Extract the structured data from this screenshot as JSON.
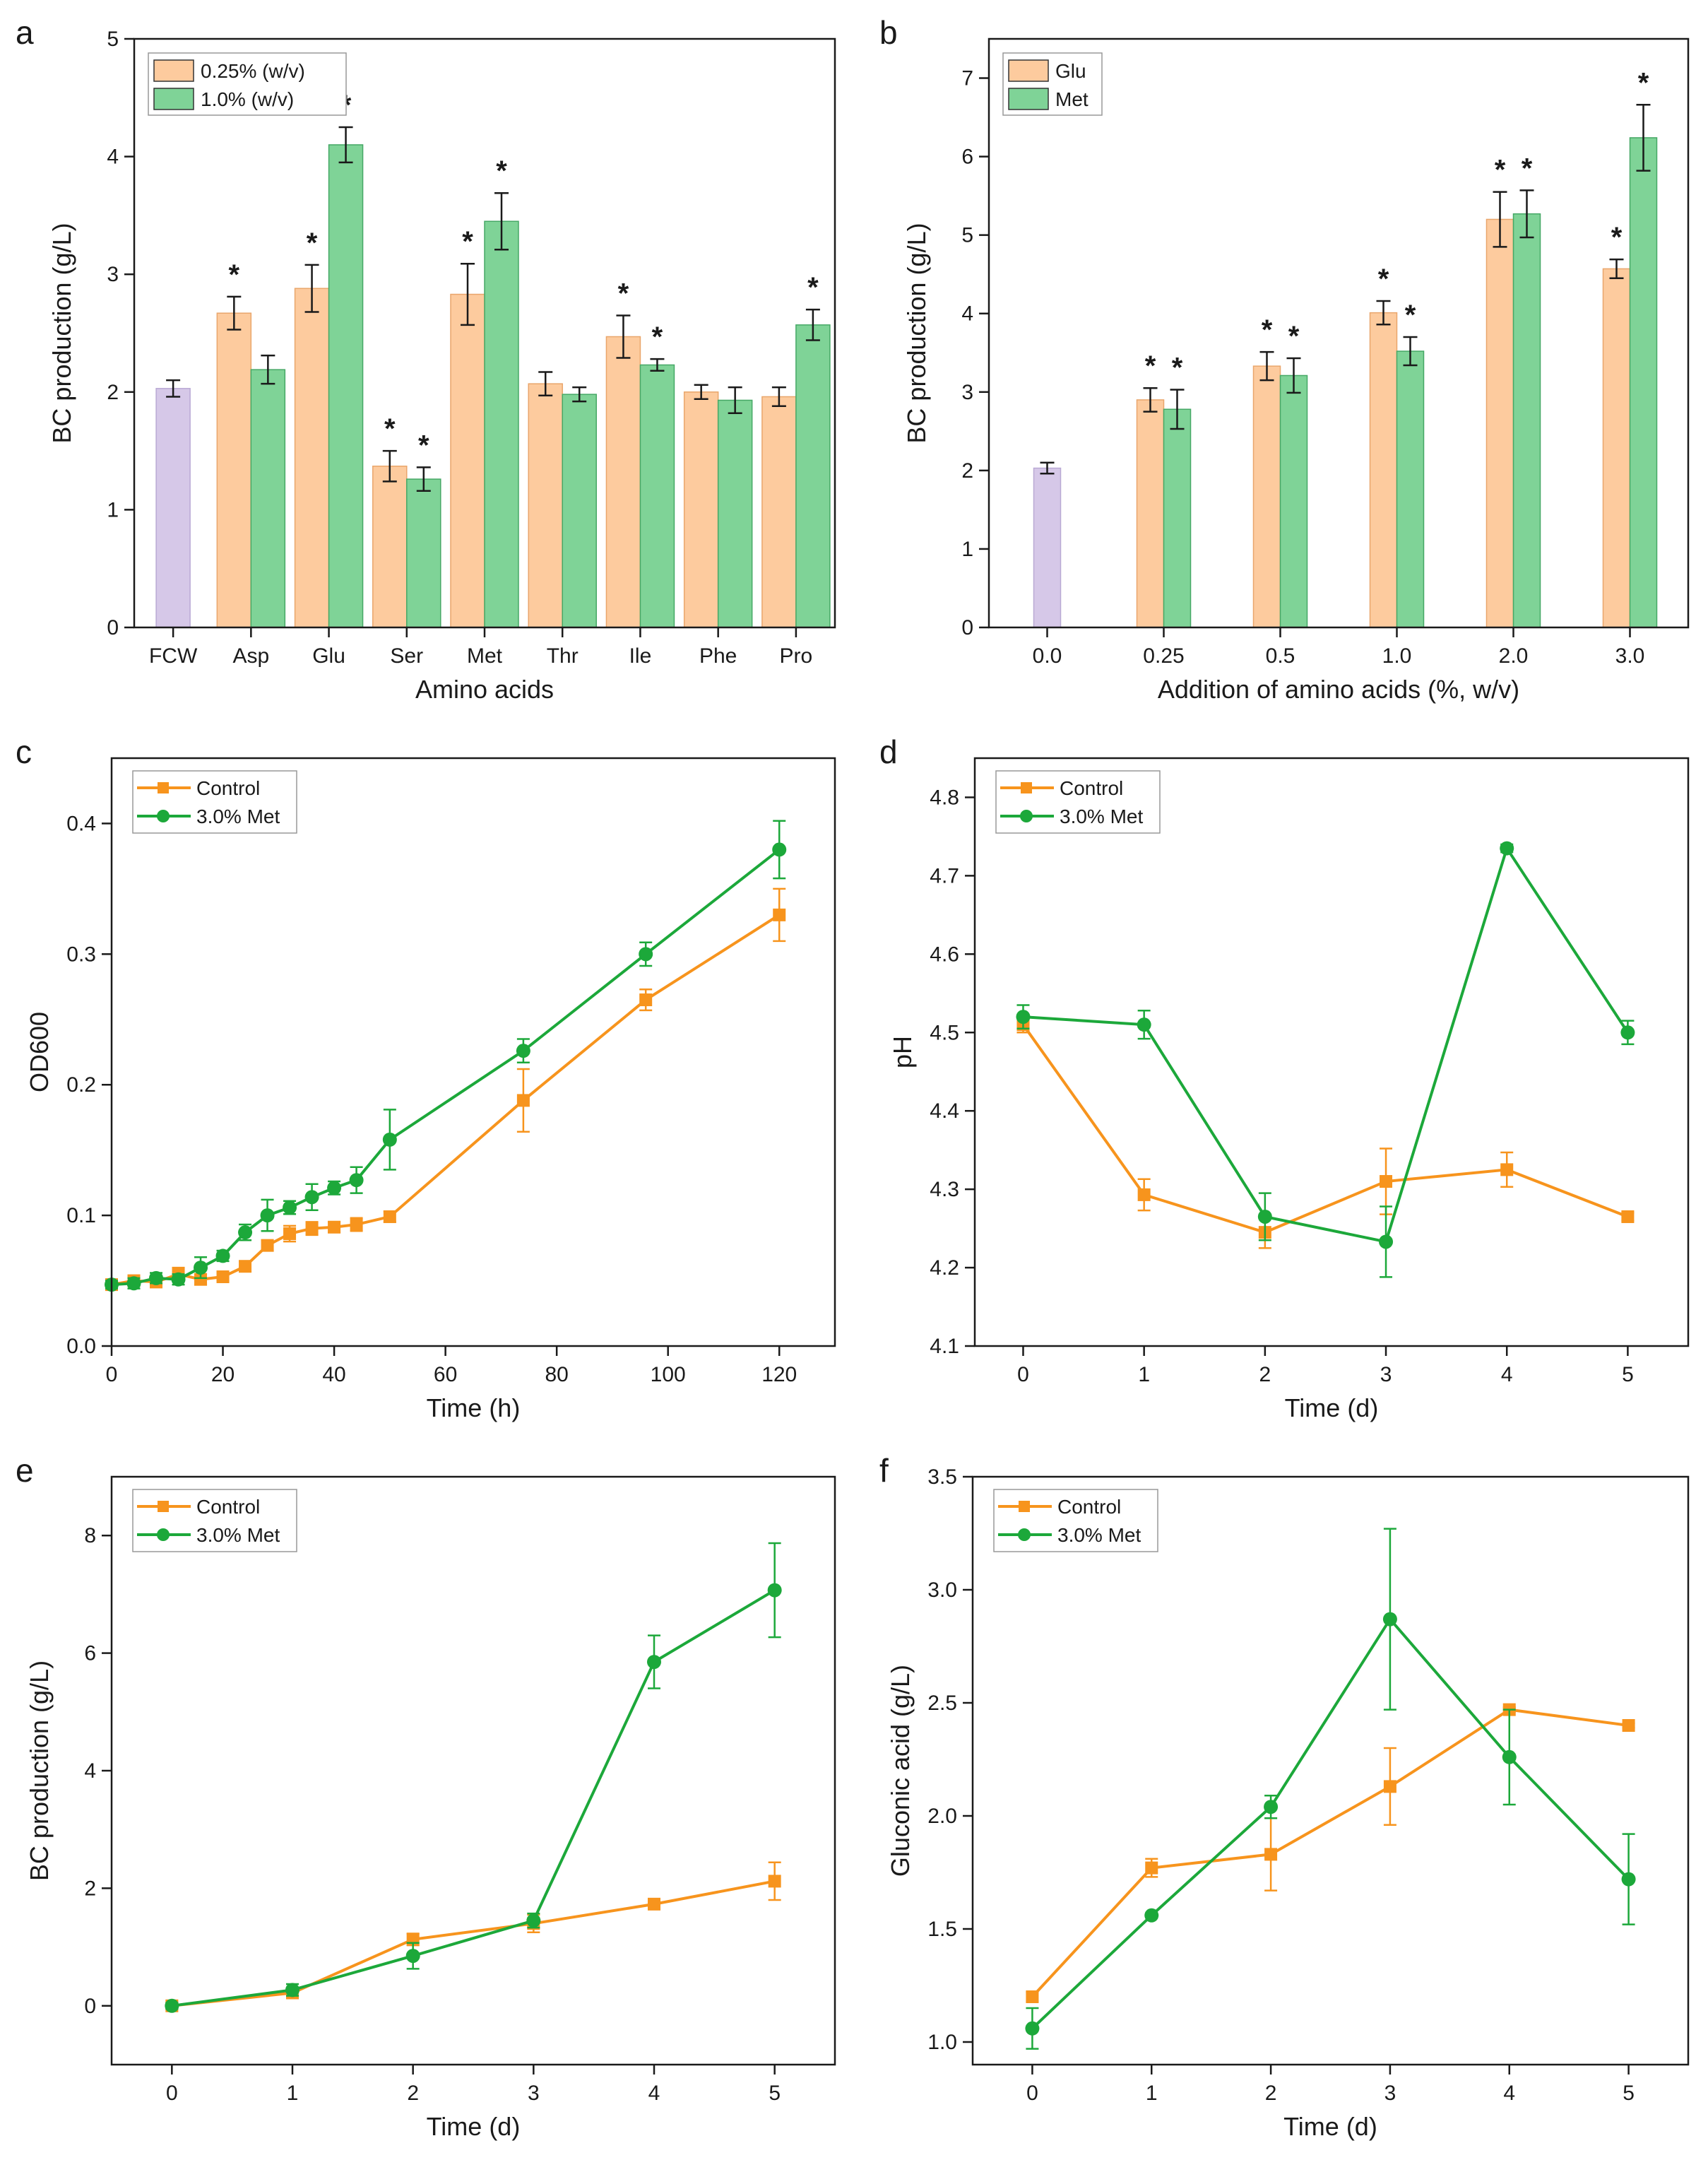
{
  "colors": {
    "orange_fill": "#FDCB9E",
    "green_fill": "#7FD397",
    "purple_fill": "#D6C8E8",
    "orange_line": "#F7941D",
    "green_line": "#1CA83A",
    "error": "#1a1a1a",
    "axis": "#1a1a1a"
  },
  "chart_data": [
    {
      "panel": "a",
      "type": "bar",
      "xlabel": "Amino acids",
      "ylabel": "BC production (g/L)",
      "ylim": [
        0,
        5
      ],
      "yticks": [
        "0",
        "1",
        "2",
        "3",
        "4",
        "5"
      ],
      "categories": [
        "FCW",
        "Asp",
        "Glu",
        "Ser",
        "Met",
        "Thr",
        "Ile",
        "Phe",
        "Pro"
      ],
      "control": {
        "category": "FCW",
        "value": 2.03,
        "error": 0.07
      },
      "series": [
        {
          "name": "0.25% (w/v)",
          "color_key": "orange_fill",
          "values": [
            null,
            2.67,
            2.88,
            1.37,
            2.83,
            2.07,
            2.47,
            2.0,
            1.96
          ],
          "errors": [
            null,
            0.14,
            0.2,
            0.13,
            0.26,
            0.1,
            0.18,
            0.06,
            0.08
          ],
          "significant": [
            false,
            true,
            true,
            true,
            true,
            false,
            true,
            false,
            false
          ]
        },
        {
          "name": "1.0% (w/v)",
          "color_key": "green_fill",
          "values": [
            null,
            2.19,
            4.1,
            1.26,
            3.45,
            1.98,
            2.23,
            1.93,
            2.57
          ],
          "errors": [
            null,
            0.12,
            0.15,
            0.1,
            0.24,
            0.06,
            0.05,
            0.11,
            0.13
          ],
          "significant": [
            false,
            false,
            true,
            true,
            true,
            false,
            true,
            false,
            true
          ]
        }
      ],
      "significance_marker": "*"
    },
    {
      "panel": "b",
      "type": "bar",
      "xlabel": "Addition of amino acids (%, w/v)",
      "ylabel": "BC production (g/L)",
      "ylim": [
        0,
        7.5
      ],
      "yticks": [
        "0",
        "1",
        "2",
        "3",
        "4",
        "5",
        "6",
        "7"
      ],
      "categories": [
        "0.0",
        "0.25",
        "0.5",
        "1.0",
        "2.0",
        "3.0"
      ],
      "control": {
        "category": "0.0",
        "value": 2.03,
        "error": 0.07
      },
      "series": [
        {
          "name": "Glu",
          "color_key": "orange_fill",
          "values": [
            null,
            2.9,
            3.33,
            4.01,
            5.2,
            4.57
          ],
          "errors": [
            null,
            0.15,
            0.18,
            0.15,
            0.35,
            0.12
          ],
          "significant": [
            false,
            true,
            true,
            true,
            true,
            true
          ]
        },
        {
          "name": "Met",
          "color_key": "green_fill",
          "values": [
            null,
            2.78,
            3.21,
            3.52,
            5.27,
            6.24
          ],
          "errors": [
            null,
            0.25,
            0.22,
            0.18,
            0.3,
            0.42
          ],
          "significant": [
            false,
            true,
            true,
            true,
            true,
            true
          ]
        }
      ],
      "significance_marker": "*"
    },
    {
      "panel": "c",
      "type": "line",
      "xlabel": "Time (h)",
      "ylabel": "OD600",
      "xlim": [
        0,
        130
      ],
      "ylim": [
        0,
        0.45
      ],
      "xticks": [
        0,
        20,
        40,
        60,
        80,
        100,
        120
      ],
      "xtick_labels": [
        "0",
        "20",
        "40",
        "60",
        "80",
        "100",
        "120"
      ],
      "yticks": [
        0,
        0.1,
        0.2,
        0.3,
        0.4
      ],
      "ytick_labels": [
        "0.0",
        "0.1",
        "0.2",
        "0.3",
        "0.4"
      ],
      "series": [
        {
          "name": "Control",
          "color_key": "orange_line",
          "marker": "square",
          "x": [
            0,
            4,
            8,
            12,
            16,
            20,
            24,
            28,
            32,
            36,
            40,
            44,
            50,
            74,
            96,
            120
          ],
          "y": [
            0.047,
            0.05,
            0.049,
            0.055,
            0.051,
            0.053,
            0.061,
            0.077,
            0.086,
            0.09,
            0.091,
            0.093,
            0.099,
            0.188,
            0.265,
            0.33
          ],
          "err": [
            0.003,
            0.003,
            0.003,
            0.005,
            0.004,
            0.003,
            0.004,
            0.004,
            0.006,
            0.005,
            0.004,
            0.005,
            0.004,
            0.024,
            0.008,
            0.02
          ]
        },
        {
          "name": "3.0% Met",
          "color_key": "green_line",
          "marker": "circle",
          "x": [
            0,
            4,
            8,
            12,
            16,
            20,
            24,
            28,
            32,
            36,
            40,
            44,
            50,
            74,
            96,
            120
          ],
          "y": [
            0.047,
            0.048,
            0.052,
            0.051,
            0.06,
            0.069,
            0.087,
            0.1,
            0.106,
            0.114,
            0.121,
            0.127,
            0.158,
            0.226,
            0.3,
            0.38
          ],
          "err": [
            0.003,
            0.004,
            0.004,
            0.004,
            0.008,
            0.004,
            0.006,
            0.012,
            0.005,
            0.01,
            0.005,
            0.01,
            0.023,
            0.009,
            0.009,
            0.022
          ]
        }
      ]
    },
    {
      "panel": "d",
      "type": "line",
      "xlabel": "Time (d)",
      "ylabel": "pH",
      "xlim": [
        -0.4,
        5.5
      ],
      "ylim": [
        4.1,
        4.85
      ],
      "xticks": [
        0,
        1,
        2,
        3,
        4,
        5
      ],
      "xtick_labels": [
        "0",
        "1",
        "2",
        "3",
        "4",
        "5"
      ],
      "yticks": [
        4.1,
        4.2,
        4.3,
        4.4,
        4.5,
        4.6,
        4.7,
        4.8
      ],
      "ytick_labels": [
        "4.1",
        "4.2",
        "4.3",
        "4.4",
        "4.5",
        "4.6",
        "4.7",
        "4.8"
      ],
      "series": [
        {
          "name": "Control",
          "color_key": "orange_line",
          "marker": "square",
          "x": [
            0,
            1,
            2,
            3,
            4,
            5
          ],
          "y": [
            4.51,
            4.293,
            4.245,
            4.31,
            4.325,
            4.265
          ],
          "err": [
            0.01,
            0.02,
            0.02,
            0.042,
            0.022,
            0.005
          ]
        },
        {
          "name": "3.0% Met",
          "color_key": "green_line",
          "marker": "circle",
          "x": [
            0,
            1,
            2,
            3,
            4,
            5
          ],
          "y": [
            4.52,
            4.51,
            4.265,
            4.233,
            4.735,
            4.5
          ],
          "err": [
            0.015,
            0.018,
            0.03,
            0.045,
            0.005,
            0.015
          ]
        }
      ]
    },
    {
      "panel": "e",
      "type": "line",
      "xlabel": "Time (d)",
      "ylabel": "BC production (g/L)",
      "xlim": [
        -0.5,
        5.5
      ],
      "ylim": [
        -1,
        9
      ],
      "xticks": [
        0,
        1,
        2,
        3,
        4,
        5
      ],
      "xtick_labels": [
        "0",
        "1",
        "2",
        "3",
        "4",
        "5"
      ],
      "yticks": [
        0,
        2,
        4,
        6,
        8
      ],
      "ytick_labels": [
        "0",
        "2",
        "4",
        "6",
        "8"
      ],
      "series": [
        {
          "name": "Control",
          "color_key": "orange_line",
          "marker": "square",
          "x": [
            0,
            1,
            2,
            3,
            4,
            5
          ],
          "y": [
            0,
            0.22,
            1.13,
            1.4,
            1.73,
            2.12
          ],
          "err": [
            0.05,
            0.08,
            0.1,
            0.15,
            0.08,
            0.32
          ]
        },
        {
          "name": "3.0% Met",
          "color_key": "green_line",
          "marker": "circle",
          "x": [
            0,
            1,
            2,
            3,
            4,
            5
          ],
          "y": [
            0,
            0.27,
            0.85,
            1.45,
            5.85,
            7.07
          ],
          "err": [
            0.05,
            0.1,
            0.22,
            0.12,
            0.45,
            0.8
          ]
        }
      ]
    },
    {
      "panel": "f",
      "type": "line",
      "xlabel": "Time (d)",
      "ylabel": "Gluconic acid (g/L)",
      "xlim": [
        -0.5,
        5.5
      ],
      "ylim": [
        0.9,
        3.5
      ],
      "xticks": [
        0,
        1,
        2,
        3,
        4,
        5
      ],
      "xtick_labels": [
        "0",
        "1",
        "2",
        "3",
        "4",
        "5"
      ],
      "yticks": [
        1.0,
        1.5,
        2.0,
        2.5,
        3.0,
        3.5
      ],
      "ytick_labels": [
        "1.0",
        "1.5",
        "2.0",
        "2.5",
        "3.0",
        "3.5"
      ],
      "series": [
        {
          "name": "Control",
          "color_key": "orange_line",
          "marker": "square",
          "x": [
            0,
            1,
            2,
            3,
            4,
            5
          ],
          "y": [
            1.2,
            1.77,
            1.83,
            2.13,
            2.47,
            2.4
          ],
          "err": [
            0.02,
            0.04,
            0.16,
            0.17,
            0.01,
            0.01
          ]
        },
        {
          "name": "3.0% Met",
          "color_key": "green_line",
          "marker": "circle",
          "x": [
            0,
            1,
            2,
            3,
            4,
            5
          ],
          "y": [
            1.06,
            1.56,
            2.04,
            2.87,
            2.26,
            1.72
          ],
          "err": [
            0.09,
            0.01,
            0.05,
            0.4,
            0.21,
            0.2
          ]
        }
      ]
    }
  ]
}
